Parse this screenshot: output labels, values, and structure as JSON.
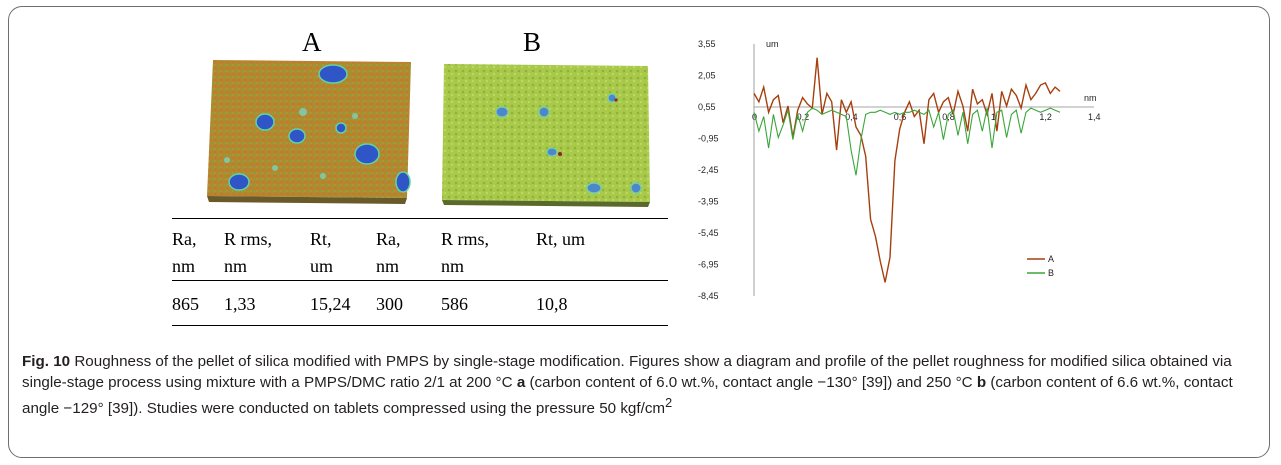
{
  "figure": {
    "panel_a_label": "A",
    "panel_b_label": "B"
  },
  "table": {
    "headers": [
      [
        "Ra,",
        "nm"
      ],
      [
        "R rms,",
        "nm"
      ],
      [
        "Rt,",
        "um"
      ],
      [
        "Ra,",
        "nm"
      ],
      [
        "R rms,",
        "nm"
      ],
      [
        "Rt, um",
        ""
      ]
    ],
    "values": [
      "865",
      "1,33",
      "15,24",
      "300",
      "586",
      "10,8"
    ]
  },
  "chart_data": {
    "type": "line",
    "y_unit": "um",
    "x_unit": "nm",
    "xlim": [
      0,
      1.4
    ],
    "ylim": [
      -8.45,
      3.55
    ],
    "x_ticks": [
      "0",
      "0,2",
      "0,4",
      "0,6",
      "0,8",
      "1",
      "1,2",
      "1,4"
    ],
    "y_ticks": [
      "3,55",
      "2,05",
      "0,55",
      "-0,95",
      "-2,45",
      "-3,95",
      "-5,45",
      "-6,95",
      "-8,45"
    ],
    "legend_position": "bottom-right",
    "series": [
      {
        "name": "A",
        "color": "#a5400e",
        "x": [
          0,
          0.02,
          0.04,
          0.06,
          0.08,
          0.1,
          0.12,
          0.14,
          0.16,
          0.18,
          0.2,
          0.22,
          0.24,
          0.26,
          0.28,
          0.3,
          0.32,
          0.34,
          0.36,
          0.38,
          0.4,
          0.42,
          0.44,
          0.46,
          0.48,
          0.5,
          0.52,
          0.54,
          0.56,
          0.58,
          0.6,
          0.62,
          0.64,
          0.66,
          0.68,
          0.7,
          0.72,
          0.74,
          0.76,
          0.78,
          0.8,
          0.82,
          0.84,
          0.86,
          0.88,
          0.9,
          0.92,
          0.94,
          0.96,
          0.98,
          1.0,
          1.02,
          1.04,
          1.06,
          1.08,
          1.1,
          1.12,
          1.14,
          1.16,
          1.18,
          1.2,
          1.22,
          1.24,
          1.26
        ],
        "y": [
          1.2,
          0.8,
          1.5,
          0.3,
          0.9,
          1.1,
          -0.2,
          0.6,
          -0.9,
          0.4,
          1.0,
          0.7,
          0.5,
          2.9,
          0.2,
          1.2,
          0.8,
          -1.5,
          0.9,
          0.3,
          0.8,
          -0.4,
          -0.8,
          -1.8,
          -4.8,
          -5.6,
          -6.8,
          -7.8,
          -6.6,
          -2.0,
          -0.5,
          0.3,
          0.8,
          0.1,
          0.4,
          -1.2,
          0.9,
          1.2,
          0.3,
          0.8,
          1.0,
          0.2,
          1.3,
          0.6,
          -0.6,
          1.4,
          0.7,
          0.9,
          0.2,
          1.2,
          -0.6,
          1.3,
          0.6,
          1.4,
          1.1,
          0.5,
          1.6,
          0.9,
          1.2,
          1.6,
          1.7,
          1.2,
          1.5,
          1.3
        ]
      },
      {
        "name": "B",
        "color": "#3aa63a",
        "x": [
          0,
          0.02,
          0.04,
          0.06,
          0.08,
          0.1,
          0.12,
          0.14,
          0.16,
          0.18,
          0.2,
          0.22,
          0.24,
          0.26,
          0.28,
          0.3,
          0.32,
          0.34,
          0.36,
          0.38,
          0.4,
          0.42,
          0.44,
          0.46,
          0.48,
          0.5,
          0.52,
          0.54,
          0.56,
          0.58,
          0.6,
          0.62,
          0.64,
          0.66,
          0.68,
          0.7,
          0.72,
          0.74,
          0.76,
          0.78,
          0.8,
          0.82,
          0.84,
          0.86,
          0.88,
          0.9,
          0.92,
          0.94,
          0.96,
          0.98,
          1.0,
          1.02,
          1.04,
          1.06,
          1.08,
          1.1,
          1.12,
          1.14,
          1.16,
          1.18,
          1.2,
          1.22,
          1.24,
          1.26
        ],
        "y": [
          0.3,
          -0.6,
          0.1,
          -1.4,
          0.2,
          -0.9,
          -0.3,
          0.4,
          -1.0,
          0.2,
          -0.6,
          0.3,
          0.5,
          0.4,
          0.2,
          0.3,
          0.4,
          0.3,
          0.2,
          0.1,
          -1.5,
          -2.7,
          -1.0,
          0.2,
          0.3,
          0.3,
          0.4,
          0.3,
          0.2,
          0.3,
          0.2,
          0.3,
          0.3,
          0.4,
          0.3,
          0.2,
          0.4,
          -0.4,
          0.3,
          -1.0,
          0.2,
          0.4,
          -0.8,
          0.3,
          -1.2,
          0.2,
          0.4,
          -0.6,
          0.5,
          -1.4,
          0.3,
          0.4,
          -0.9,
          0.2,
          0.4,
          -0.7,
          0.3,
          0.5,
          0.4,
          0.3,
          0.4,
          0.5,
          0.4,
          0.3
        ]
      }
    ]
  },
  "caption": {
    "label": "Fig. 10",
    "text_1": " Roughness of the pellet of silica modified with PMPS by single-stage modification. Figures show a diagram and profile of the pellet roughness for modified silica obtained via single-stage process using mixture with a PMPS/DMC ratio 2/1 at 200 °C ",
    "ref_a": "a",
    "text_2": " (carbon content of 6.0 wt.%, contact angle −130° [39]) and 250 °C ",
    "ref_b": "b",
    "text_3": " (carbon content of 6.6 wt.%, contact angle −129° [39]). Studies were conducted on tablets compressed using the pressure 50 kgf/cm",
    "superscript": "2"
  }
}
